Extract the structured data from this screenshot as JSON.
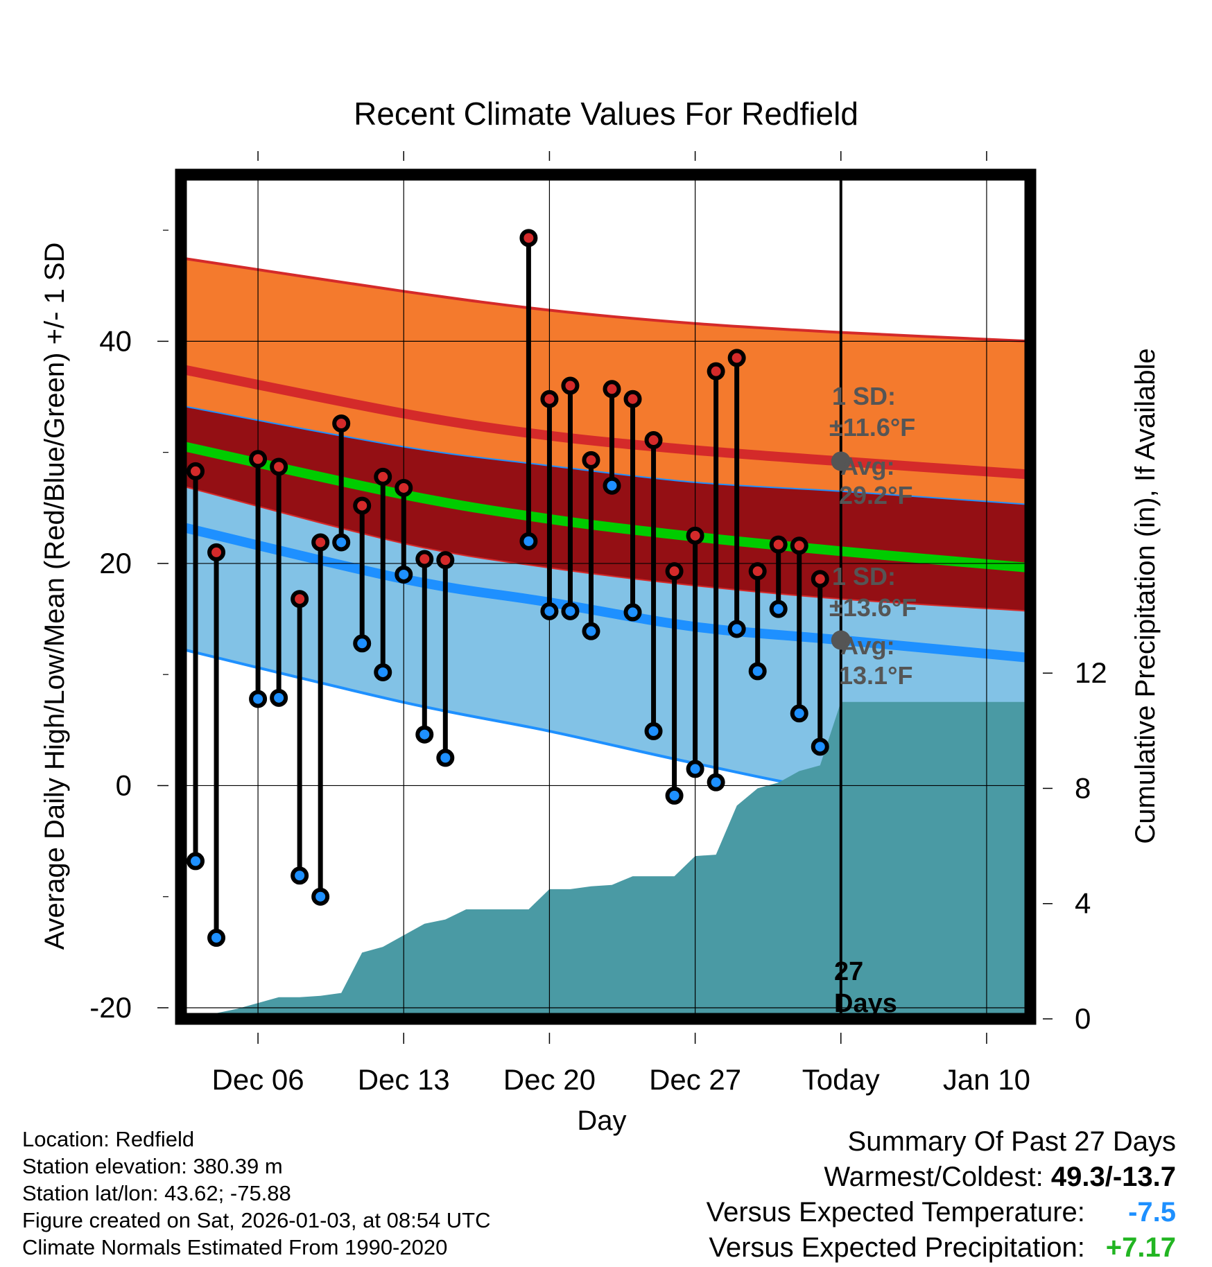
{
  "chart_data": {
    "type": "line",
    "title": "Recent Climate Values For Redfield",
    "xlabel": "Day",
    "ylabel_left": "Average Daily High/Low/Mean (Red/Blue/Green) +/- 1 SD",
    "ylabel_right": "Cumulative Precipitation (in), If Available",
    "x_ticks": [
      {
        "day": 6,
        "label": "Dec 06"
      },
      {
        "day": 13,
        "label": "Dec 13"
      },
      {
        "day": 20,
        "label": "Dec 20"
      },
      {
        "day": 27,
        "label": "Dec 27"
      },
      {
        "day": 34,
        "label": "Today"
      },
      {
        "day": 41,
        "label": "Jan 10"
      }
    ],
    "xlim": [
      2.3,
      43.1
    ],
    "ylim": [
      -21,
      55
    ],
    "y_ticks": [
      -20,
      0,
      20,
      40
    ],
    "y_minor_ticks": [
      -10,
      10,
      30,
      50
    ],
    "precip_ylim": [
      0,
      29.3
    ],
    "precip_ticks": [
      0,
      4,
      8,
      12
    ],
    "today_day": 34,
    "normals": {
      "days": [
        2.3,
        13,
        20,
        27,
        34,
        43.1
      ],
      "high_plus_sd": [
        47.5,
        44.5,
        42.8,
        41.6,
        40.8,
        40.0
      ],
      "high_mean": [
        37.5,
        33.5,
        31.5,
        30.2,
        29.2,
        28.0
      ],
      "high_minus_sd": [
        34.2,
        30.5,
        28.8,
        27.3,
        26.5,
        25.3
      ],
      "mean": [
        30.6,
        26.2,
        24.0,
        22.4,
        21.1,
        19.6
      ],
      "low_plus_sd": [
        27.0,
        21.8,
        19.6,
        18.0,
        16.8,
        15.7
      ],
      "low_mean": [
        23.3,
        18.6,
        16.5,
        14.3,
        13.1,
        11.5
      ],
      "low_minus_sd": [
        12.3,
        7.5,
        4.9,
        2.0,
        -0.5,
        -2.0
      ]
    },
    "series": [
      {
        "name": "High",
        "color": "#d42a2a",
        "days": [
          3,
          4,
          6,
          7,
          8,
          9,
          10,
          11,
          12,
          13,
          14,
          15,
          19,
          20,
          21,
          22,
          23,
          24,
          25,
          26,
          27,
          28,
          29,
          30,
          31,
          32,
          33
        ],
        "values": [
          28.3,
          21.0,
          29.4,
          28.7,
          16.8,
          21.9,
          32.6,
          25.2,
          27.8,
          26.8,
          20.4,
          20.3,
          49.3,
          34.8,
          36.0,
          29.3,
          35.7,
          34.8,
          31.1,
          19.3,
          22.5,
          37.3,
          38.5,
          19.3,
          21.7,
          21.6,
          18.6
        ]
      },
      {
        "name": "Low",
        "color": "#1e90ff",
        "days": [
          3,
          4,
          6,
          7,
          8,
          9,
          10,
          11,
          12,
          13,
          14,
          15,
          19,
          20,
          21,
          22,
          23,
          24,
          25,
          26,
          27,
          28,
          29,
          30,
          31,
          32,
          33
        ],
        "values": [
          -6.8,
          -13.7,
          7.8,
          7.9,
          -8.1,
          -10.0,
          21.9,
          12.8,
          10.2,
          19.0,
          4.6,
          2.5,
          22.0,
          15.7,
          15.7,
          13.9,
          27.0,
          15.6,
          4.9,
          -0.9,
          1.5,
          0.3,
          14.1,
          10.3,
          15.9,
          6.5,
          3.5
        ]
      },
      {
        "name": "Cumulative Precipitation (in)",
        "days": [
          2.5,
          3,
          4,
          5,
          6,
          7,
          8,
          9,
          10,
          11,
          12,
          13,
          14,
          15,
          16,
          17,
          18,
          19,
          20,
          21,
          22,
          23,
          24,
          25,
          26,
          27,
          28,
          29,
          30,
          31,
          32,
          33,
          34,
          43.1
        ],
        "values": [
          0.05,
          0.2,
          0.2,
          0.35,
          0.55,
          0.75,
          0.75,
          0.8,
          0.9,
          2.3,
          2.5,
          2.9,
          3.3,
          3.45,
          3.8,
          3.8,
          3.8,
          3.8,
          4.5,
          4.5,
          4.6,
          4.65,
          4.95,
          4.95,
          4.95,
          5.65,
          5.7,
          7.4,
          8.0,
          8.2,
          8.6,
          8.8,
          11.0,
          11.0
        ]
      }
    ],
    "annotations": {
      "high_sd": "1 SD:",
      "high_sd_val": "±11.6°F",
      "high_avg": "Avg:",
      "high_avg_val": "29.2°F",
      "low_sd": "1 SD:",
      "low_sd_val": "±13.6°F",
      "low_avg": "Avg:",
      "low_avg_val": "13.1°F",
      "days_count": "27",
      "days_word": "Days"
    },
    "colors": {
      "high_band": "#f47a2d",
      "high_line": "#d42a2a",
      "mid_band": "#940f14",
      "mean_line": "#00cc00",
      "low_band": "#82c2e6",
      "low_line": "#1e90ff",
      "precip": "#4a9aa4",
      "avg_marker": "#555555"
    }
  },
  "info": {
    "location": "Location: Redfield",
    "elevation": "Station elevation: 380.39 m",
    "latlon": "Station lat/lon: 43.62; -75.88",
    "created": "Figure created on Sat, 2026-01-03, at 08:54 UTC",
    "normals": "Climate Normals Estimated From 1990-2020"
  },
  "summary": {
    "title": "Summary Of Past 27 Days",
    "warmest_label": "Warmest/Coldest:",
    "warmest_value": "49.3/-13.7",
    "temp_label": "Versus Expected Temperature:",
    "temp_value": "-7.5",
    "precip_label": "Versus Expected Precipitation:",
    "precip_value": "+7.17"
  }
}
